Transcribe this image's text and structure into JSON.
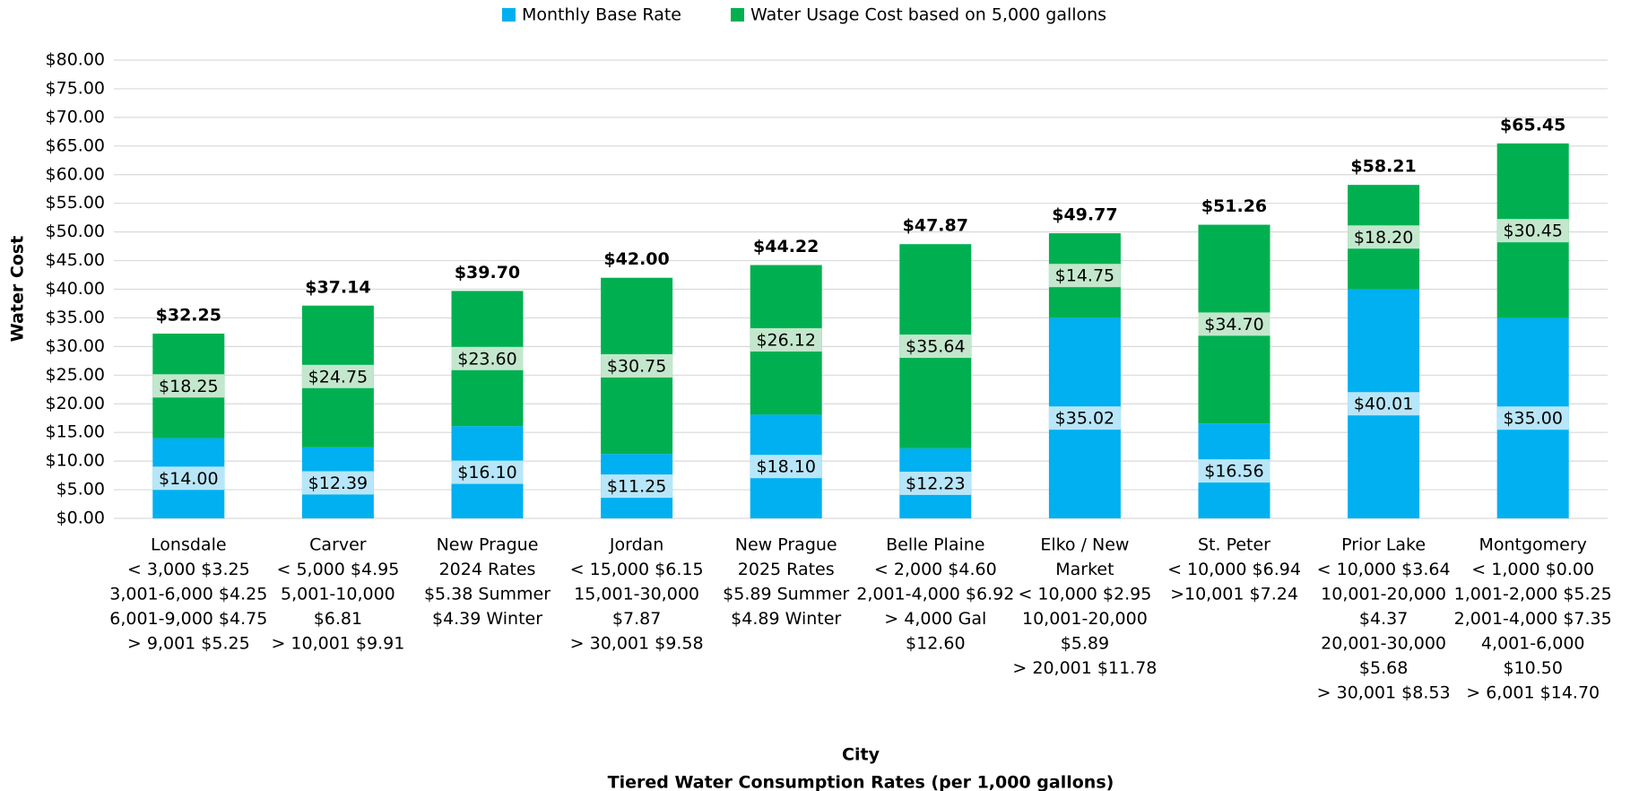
{
  "chart_data": {
    "type": "stacked_bar",
    "x_label": "City",
    "x_sublabel": "Tiered Water Consumption Rates (per 1,000 gallons)",
    "y_label": "Water Cost",
    "categories": [
      [
        "Lonsdale",
        "< 3,000 $3.25",
        "3,001-6,000 $4.25",
        "6,001-9,000 $4.75",
        "> 9,001 $5.25"
      ],
      [
        "Carver",
        "< 5,000 $4.95",
        "5,001-10,000",
        "$6.81",
        "> 10,001 $9.91"
      ],
      [
        "New Prague",
        "2024 Rates",
        "$5.38 Summer",
        "$4.39 Winter"
      ],
      [
        "Jordan",
        "< 15,000 $6.15",
        "15,001-30,000",
        "$7.87",
        "> 30,001 $9.58"
      ],
      [
        "New Prague",
        "2025 Rates",
        "$5.89 Summer",
        "$4.89 Winter"
      ],
      [
        "Belle Plaine",
        "< 2,000 $4.60",
        "2,001-4,000 $6.92",
        "> 4,000 Gal",
        "$12.60"
      ],
      [
        "Elko / New",
        "Market",
        "< 10,000 $2.95",
        "10,001-20,000",
        "$5.89",
        "> 20,001  $11.78"
      ],
      [
        "St. Peter",
        "< 10,000 $6.94",
        ">10,001 $7.24"
      ],
      [
        "Prior Lake",
        "< 10,000 $3.64",
        "10,001-20,000",
        "$4.37",
        "20,001-30,000",
        "$5.68",
        "> 30,001 $8.53"
      ],
      [
        "Montgomery",
        "< 1,000 $0.00",
        "1,001-2,000 $5.25",
        "2,001-4,000 $7.35",
        "4,001-6,000",
        "$10.50",
        "> 6,001 $14.70"
      ]
    ],
    "series": [
      {
        "name": "Monthly Base Rate",
        "color": "#00b0f0",
        "label_bg": "#b7e6f8",
        "values": [
          14.0,
          12.39,
          16.1,
          11.25,
          18.1,
          12.23,
          35.02,
          16.56,
          40.01,
          35.0
        ],
        "value_labels": [
          "$14.00",
          "$12.39",
          "$16.10",
          "$11.25",
          "$18.10",
          "$12.23",
          "$35.02",
          "$16.56",
          "$40.01",
          "$35.00"
        ]
      },
      {
        "name": "Water Usage Cost based on 5,000 gallons",
        "color": "#00b050",
        "label_bg": "#c3e7cc",
        "values": [
          18.25,
          24.75,
          23.6,
          30.75,
          26.12,
          35.64,
          14.75,
          34.7,
          18.2,
          30.45
        ],
        "value_labels": [
          "$18.25",
          "$24.75",
          "$23.60",
          "$30.75",
          "$26.12",
          "$35.64",
          "$14.75",
          "$34.70",
          "$18.20",
          "$30.45"
        ]
      }
    ],
    "totals": [
      32.25,
      37.14,
      39.7,
      42.0,
      44.22,
      47.87,
      49.77,
      51.26,
      58.21,
      65.45
    ],
    "total_labels": [
      "$32.25",
      "$37.14",
      "$39.70",
      "$42.00",
      "$44.22",
      "$47.87",
      "$49.77",
      "$51.26",
      "$58.21",
      "$65.45"
    ],
    "ylim": [
      0,
      80
    ],
    "yticks": [
      {
        "value": 0,
        "label": "$0.00"
      },
      {
        "value": 5,
        "label": "$5.00"
      },
      {
        "value": 10,
        "label": "$10.00"
      },
      {
        "value": 15,
        "label": "$15.00"
      },
      {
        "value": 20,
        "label": "$20.00"
      },
      {
        "value": 25,
        "label": "$25.00"
      },
      {
        "value": 30,
        "label": "$30.00"
      },
      {
        "value": 35,
        "label": "$35.00"
      },
      {
        "value": 40,
        "label": "$40.00"
      },
      {
        "value": 45,
        "label": "$45.00"
      },
      {
        "value": 50,
        "label": "$50.00"
      },
      {
        "value": 55,
        "label": "$55.00"
      },
      {
        "value": 60,
        "label": "$60.00"
      },
      {
        "value": 65,
        "label": "$65.00"
      },
      {
        "value": 70,
        "label": "$70.00"
      },
      {
        "value": 75,
        "label": "$75.00"
      },
      {
        "value": 80,
        "label": "$80.00"
      }
    ],
    "grid": true,
    "legend": "top"
  }
}
